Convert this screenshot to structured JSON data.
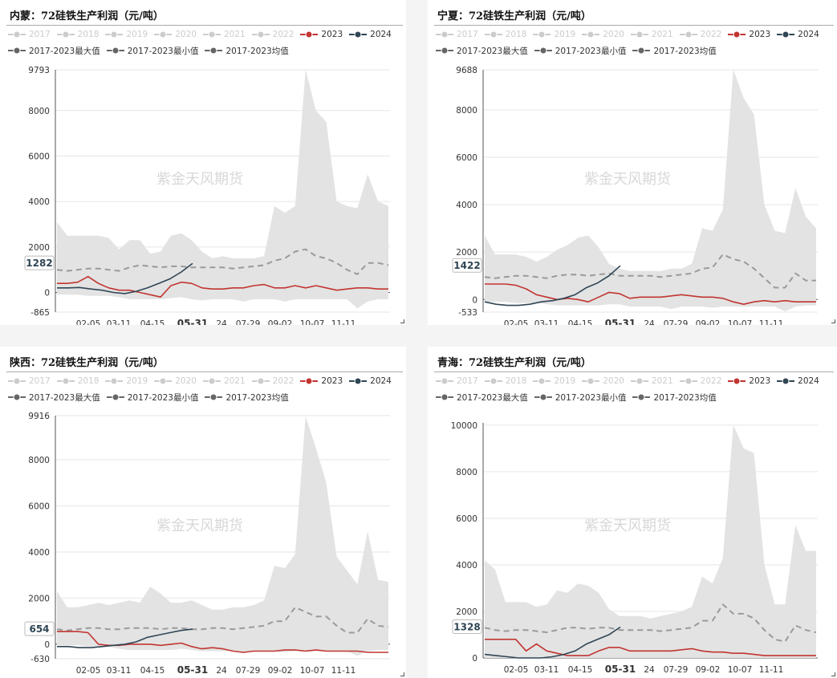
{
  "colors": {
    "hist_series": "#cccccc",
    "series_2023": "#c23531",
    "series_2024": "#2f4554",
    "band_fill": "#e3e3e3",
    "mean_line": "#9a9a9a",
    "agg_legend": "#666666"
  },
  "watermark": "紫金天风期货",
  "legend": {
    "row1": [
      "2017",
      "2018",
      "2019",
      "2020",
      "2021",
      "2022",
      "2023",
      "2024"
    ],
    "row2": [
      "2017-2023最大值",
      "2017-2023最小值",
      "2017-2023均值"
    ]
  },
  "x_ticks": [
    "02-05",
    "03-11",
    "04-15",
    "05-31",
    "24",
    "07-29",
    "09-02",
    "10-07",
    "11-11"
  ],
  "chart_data": [
    {
      "type": "line",
      "title": "内蒙：72硅铁生产利润（元/吨）",
      "y_ticks": [
        "9793",
        "8000",
        "6000",
        "4000",
        "2000",
        "0",
        "-865"
      ],
      "ylim": [
        -865,
        9793
      ],
      "current_label": "1282",
      "series": [
        {
          "name": "2017-2023最大值",
          "values": [
            3100,
            2500,
            2500,
            2500,
            2500,
            2400,
            1900,
            2300,
            2300,
            1700,
            1800,
            2500,
            2600,
            2300,
            1800,
            1500,
            1600,
            1500,
            1500,
            1500,
            1600,
            3800,
            3500,
            3800,
            9800,
            8000,
            7500,
            4000,
            3800,
            3700,
            5200,
            4000,
            3800
          ]
        },
        {
          "name": "2017-2023最小值",
          "values": [
            -100,
            -100,
            -100,
            -150,
            -150,
            -150,
            -200,
            -300,
            -300,
            -300,
            -300,
            -250,
            -200,
            -300,
            -350,
            -300,
            -300,
            -300,
            -400,
            -300,
            -300,
            -300,
            -400,
            -300,
            -300,
            -300,
            -300,
            -300,
            -300,
            -700,
            -400,
            -300,
            -300
          ]
        },
        {
          "name": "2017-2023均值",
          "values": [
            1000,
            950,
            1000,
            1050,
            1050,
            1000,
            950,
            1100,
            1200,
            1150,
            1100,
            1150,
            1150,
            1100,
            1100,
            1100,
            1100,
            1050,
            1100,
            1150,
            1200,
            1400,
            1500,
            1800,
            1900,
            1600,
            1500,
            1300,
            1000,
            800,
            1300,
            1300,
            1200
          ]
        },
        {
          "name": "2023",
          "values": [
            400,
            400,
            450,
            700,
            400,
            200,
            100,
            100,
            0,
            -100,
            -200,
            300,
            450,
            400,
            200,
            150,
            150,
            200,
            200,
            300,
            350,
            200,
            200,
            300,
            200,
            300,
            200,
            100,
            150,
            200,
            200,
            150,
            150
          ]
        },
        {
          "name": "2024",
          "values": [
            200,
            200,
            220,
            150,
            100,
            0,
            -50,
            50,
            200,
            400,
            600,
            900,
            1282
          ]
        }
      ]
    },
    {
      "type": "line",
      "title": "宁夏：72硅铁生产利润（元/吨）",
      "y_ticks": [
        "9688",
        "8000",
        "6000",
        "4000",
        "2000",
        "0",
        "-533"
      ],
      "ylim": [
        -533,
        9688
      ],
      "current_label": "1422",
      "series": [
        {
          "name": "2017-2023最大值",
          "values": [
            2700,
            1900,
            1900,
            1900,
            1800,
            1600,
            1800,
            2100,
            2300,
            2600,
            2700,
            2200,
            1500,
            1300,
            1200,
            1200,
            1200,
            1200,
            1300,
            1300,
            1500,
            3000,
            2900,
            3800,
            9700,
            8500,
            7800,
            4000,
            2900,
            2800,
            4700,
            3500,
            3000
          ]
        },
        {
          "name": "2017-2023最小值",
          "values": [
            -100,
            -100,
            -100,
            -150,
            -150,
            -150,
            -200,
            -250,
            -250,
            -250,
            -250,
            -250,
            -200,
            -200,
            -300,
            -300,
            -300,
            -300,
            -400,
            -300,
            -300,
            -300,
            -350,
            -300,
            -300,
            -300,
            -300,
            -300,
            -300,
            -500,
            -300,
            -250,
            -250
          ]
        },
        {
          "name": "2017-2023均值",
          "values": [
            950,
            900,
            950,
            1000,
            1000,
            950,
            900,
            1000,
            1050,
            1050,
            1000,
            1050,
            1100,
            1000,
            1000,
            1000,
            1000,
            950,
            1000,
            1050,
            1100,
            1300,
            1350,
            1900,
            1700,
            1600,
            1300,
            900,
            500,
            500,
            1100,
            800,
            800
          ]
        },
        {
          "name": "2023",
          "values": [
            650,
            650,
            650,
            600,
            450,
            200,
            100,
            0,
            50,
            0,
            -100,
            100,
            300,
            250,
            50,
            100,
            100,
            100,
            150,
            200,
            150,
            100,
            100,
            50,
            -100,
            -200,
            -100,
            -50,
            -100,
            -50,
            -100,
            -100,
            -100
          ]
        },
        {
          "name": "2024",
          "values": [
            -100,
            -200,
            -250,
            -250,
            -200,
            -100,
            -50,
            50,
            200,
            500,
            700,
            1000,
            1422
          ]
        }
      ]
    },
    {
      "type": "line",
      "title": "陕西：72硅铁生产利润（元/吨）",
      "y_ticks": [
        "9916",
        "8000",
        "6000",
        "4000",
        "2000",
        "0",
        "-630"
      ],
      "ylim": [
        -630,
        9916
      ],
      "current_label": "654",
      "series": [
        {
          "name": "2017-2023最大值",
          "values": [
            2300,
            1600,
            1600,
            1700,
            1800,
            1700,
            1800,
            1900,
            1800,
            2500,
            2200,
            1800,
            1800,
            1900,
            1700,
            1500,
            1500,
            1600,
            1600,
            1700,
            1900,
            3400,
            3300,
            3900,
            9900,
            8500,
            7000,
            3800,
            3200,
            2600,
            4900,
            2800,
            2700
          ]
        },
        {
          "name": "2017-2023最小值",
          "values": [
            -50,
            -50,
            -50,
            -100,
            -100,
            -100,
            -200,
            -250,
            -250,
            -250,
            -250,
            -250,
            -200,
            -250,
            -300,
            -300,
            -300,
            -300,
            -400,
            -300,
            -300,
            -300,
            -350,
            -300,
            -300,
            -300,
            -300,
            -300,
            -300,
            -500,
            -300,
            -250,
            -250
          ]
        },
        {
          "name": "2017-2023均值",
          "values": [
            650,
            600,
            650,
            700,
            700,
            650,
            650,
            700,
            700,
            700,
            650,
            700,
            700,
            650,
            650,
            700,
            700,
            650,
            700,
            750,
            800,
            1000,
            1000,
            1600,
            1400,
            1200,
            1200,
            800,
            500,
            500,
            1100,
            800,
            750
          ]
        },
        {
          "name": "2023",
          "values": [
            550,
            550,
            550,
            500,
            0,
            -50,
            -50,
            0,
            0,
            0,
            -50,
            0,
            50,
            -100,
            -200,
            -150,
            -200,
            -300,
            -350,
            -300,
            -300,
            -300,
            -250,
            -250,
            -300,
            -250,
            -300,
            -300,
            -300,
            -300,
            -350,
            -350,
            -350
          ]
        },
        {
          "name": "2024",
          "values": [
            -100,
            -100,
            -150,
            -150,
            -100,
            -50,
            0,
            100,
            300,
            400,
            500,
            600,
            654
          ]
        }
      ]
    },
    {
      "type": "line",
      "title": "青海：72硅铁生产利润（元/吨）",
      "y_ticks": [
        "10000",
        "8000",
        "6000",
        "4000",
        "2000",
        "0"
      ],
      "ylim": [
        0,
        10100
      ],
      "current_label": "1328",
      "series": [
        {
          "name": "2017-2023最大值",
          "values": [
            4200,
            3800,
            2400,
            2400,
            2400,
            2200,
            2300,
            2900,
            2800,
            3200,
            3100,
            2800,
            2100,
            1800,
            1800,
            1800,
            1700,
            1800,
            1900,
            2000,
            2200,
            3500,
            3200,
            4300,
            10000,
            9000,
            8800,
            4000,
            2300,
            2300,
            5700,
            4600,
            4600
          ]
        },
        {
          "name": "2017-2023最小值",
          "values": [
            0,
            0,
            0,
            0,
            0,
            0,
            0,
            0,
            0,
            0,
            0,
            0,
            0,
            0,
            0,
            0,
            0,
            0,
            0,
            0,
            0,
            0,
            0,
            0,
            0,
            0,
            0,
            0,
            0,
            0,
            0,
            0,
            0
          ]
        },
        {
          "name": "2017-2023均值",
          "values": [
            1300,
            1200,
            1150,
            1200,
            1200,
            1150,
            1100,
            1200,
            1300,
            1300,
            1250,
            1300,
            1300,
            1200,
            1200,
            1200,
            1200,
            1150,
            1200,
            1250,
            1300,
            1600,
            1600,
            2300,
            1900,
            1900,
            1700,
            1200,
            800,
            700,
            1400,
            1200,
            1100
          ]
        },
        {
          "name": "2023",
          "values": [
            800,
            800,
            800,
            800,
            300,
            600,
            300,
            200,
            100,
            100,
            100,
            300,
            450,
            450,
            300,
            300,
            300,
            300,
            300,
            350,
            400,
            300,
            250,
            250,
            200,
            200,
            150,
            100,
            100,
            100,
            100,
            100,
            100
          ]
        },
        {
          "name": "2024",
          "values": [
            150,
            100,
            50,
            0,
            0,
            0,
            50,
            150,
            300,
            600,
            800,
            1000,
            1328
          ]
        }
      ]
    }
  ]
}
